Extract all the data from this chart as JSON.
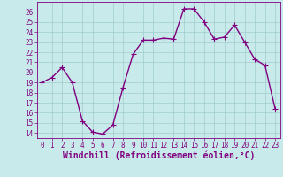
{
  "x": [
    0,
    1,
    2,
    3,
    4,
    5,
    6,
    7,
    8,
    9,
    10,
    11,
    12,
    13,
    14,
    15,
    16,
    17,
    18,
    19,
    20,
    21,
    22,
    23
  ],
  "y": [
    19,
    19.5,
    20.5,
    19,
    15.2,
    14.1,
    13.9,
    14.8,
    18.5,
    21.8,
    23.2,
    23.2,
    23.4,
    23.3,
    26.3,
    26.3,
    25.0,
    23.3,
    23.5,
    24.7,
    23.0,
    21.3,
    20.7,
    16.4
  ],
  "line_color": "#800080",
  "bg_color": "#c8eaea",
  "grid_color": "#a0cccc",
  "xlabel": "Windchill (Refroidissement éolien,°C)",
  "ylim": [
    13.5,
    27.0
  ],
  "xlim": [
    -0.5,
    23.5
  ],
  "yticks": [
    14,
    15,
    16,
    17,
    18,
    19,
    20,
    21,
    22,
    23,
    24,
    25,
    26
  ],
  "xticks": [
    0,
    1,
    2,
    3,
    4,
    5,
    6,
    7,
    8,
    9,
    10,
    11,
    12,
    13,
    14,
    15,
    16,
    17,
    18,
    19,
    20,
    21,
    22,
    23
  ],
  "tick_color": "#800080",
  "tick_fontsize": 5.5,
  "xlabel_fontsize": 7.0,
  "marker": "+",
  "marker_size": 4,
  "line_width": 1.0
}
